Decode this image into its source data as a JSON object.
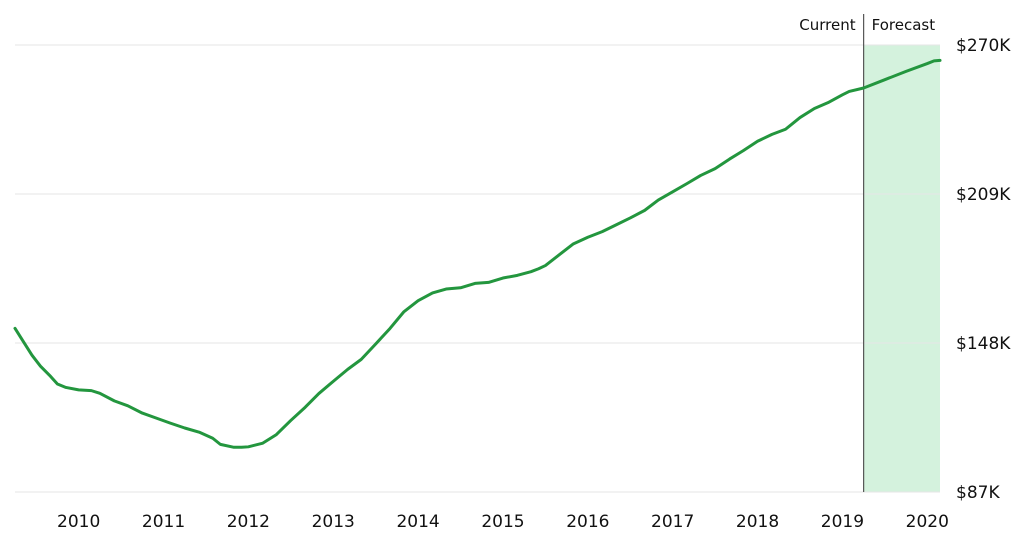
{
  "chart_data": {
    "type": "line",
    "title": "",
    "xlabel": "",
    "ylabel": "",
    "x_ticks": [
      "2010",
      "2011",
      "2012",
      "2013",
      "2014",
      "2015",
      "2016",
      "2017",
      "2018",
      "2019",
      "2020"
    ],
    "x_range": [
      2009.25,
      2020.15
    ],
    "y_ticks": [
      87,
      148,
      209,
      270
    ],
    "y_tick_labels": [
      "$87K",
      "$148K",
      "$209K",
      "$270K"
    ],
    "ylim": [
      87,
      270
    ],
    "y_axis_side": "right",
    "grid": "horizontal",
    "region_labels": {
      "current": "Current",
      "forecast": "Forecast"
    },
    "forecast_start": 2019.25,
    "colors": {
      "line": "#23963e",
      "forecast_fill": "#d4f2dd",
      "divider": "#555555",
      "grid": "#e6e6e6"
    },
    "series": [
      {
        "points": [
          [
            2009.25,
            154.0
          ],
          [
            2009.35,
            148.5
          ],
          [
            2009.45,
            143.0
          ],
          [
            2009.55,
            138.5
          ],
          [
            2009.67,
            134.3
          ],
          [
            2009.75,
            131.2
          ],
          [
            2009.85,
            129.8
          ],
          [
            2010.0,
            128.8
          ],
          [
            2010.15,
            128.5
          ],
          [
            2010.25,
            127.4
          ],
          [
            2010.42,
            124.3
          ],
          [
            2010.58,
            122.3
          ],
          [
            2010.75,
            119.3
          ],
          [
            2010.92,
            117.2
          ],
          [
            2011.08,
            115.2
          ],
          [
            2011.25,
            113.2
          ],
          [
            2011.42,
            111.5
          ],
          [
            2011.58,
            109.0
          ],
          [
            2011.67,
            106.5
          ],
          [
            2011.83,
            105.3
          ],
          [
            2011.92,
            105.3
          ],
          [
            2012.0,
            105.5
          ],
          [
            2012.17,
            107.0
          ],
          [
            2012.33,
            110.5
          ],
          [
            2012.5,
            116.3
          ],
          [
            2012.67,
            121.7
          ],
          [
            2012.83,
            127.3
          ],
          [
            2013.0,
            132.3
          ],
          [
            2013.17,
            137.2
          ],
          [
            2013.33,
            141.3
          ],
          [
            2013.5,
            147.6
          ],
          [
            2013.67,
            154.0
          ],
          [
            2013.83,
            160.7
          ],
          [
            2014.0,
            165.3
          ],
          [
            2014.17,
            168.5
          ],
          [
            2014.33,
            170.1
          ],
          [
            2014.5,
            170.6
          ],
          [
            2014.67,
            172.4
          ],
          [
            2014.83,
            172.8
          ],
          [
            2015.0,
            174.6
          ],
          [
            2015.17,
            175.7
          ],
          [
            2015.33,
            177.2
          ],
          [
            2015.42,
            178.4
          ],
          [
            2015.5,
            179.7
          ],
          [
            2015.67,
            184.3
          ],
          [
            2015.83,
            188.6
          ],
          [
            2016.0,
            191.3
          ],
          [
            2016.17,
            193.6
          ],
          [
            2016.33,
            196.3
          ],
          [
            2016.5,
            199.2
          ],
          [
            2016.67,
            202.3
          ],
          [
            2016.83,
            206.5
          ],
          [
            2017.0,
            209.9
          ],
          [
            2017.17,
            213.3
          ],
          [
            2017.33,
            216.6
          ],
          [
            2017.5,
            219.4
          ],
          [
            2017.67,
            223.3
          ],
          [
            2017.83,
            226.7
          ],
          [
            2018.0,
            230.6
          ],
          [
            2018.17,
            233.4
          ],
          [
            2018.33,
            235.5
          ],
          [
            2018.5,
            240.3
          ],
          [
            2018.67,
            244.0
          ],
          [
            2018.83,
            246.4
          ],
          [
            2019.0,
            249.6
          ],
          [
            2019.08,
            251.0
          ],
          [
            2019.25,
            252.4
          ],
          [
            2019.5,
            255.8
          ],
          [
            2019.75,
            259.2
          ],
          [
            2020.0,
            262.4
          ],
          [
            2020.08,
            263.5
          ],
          [
            2020.15,
            263.7
          ]
        ]
      }
    ]
  }
}
